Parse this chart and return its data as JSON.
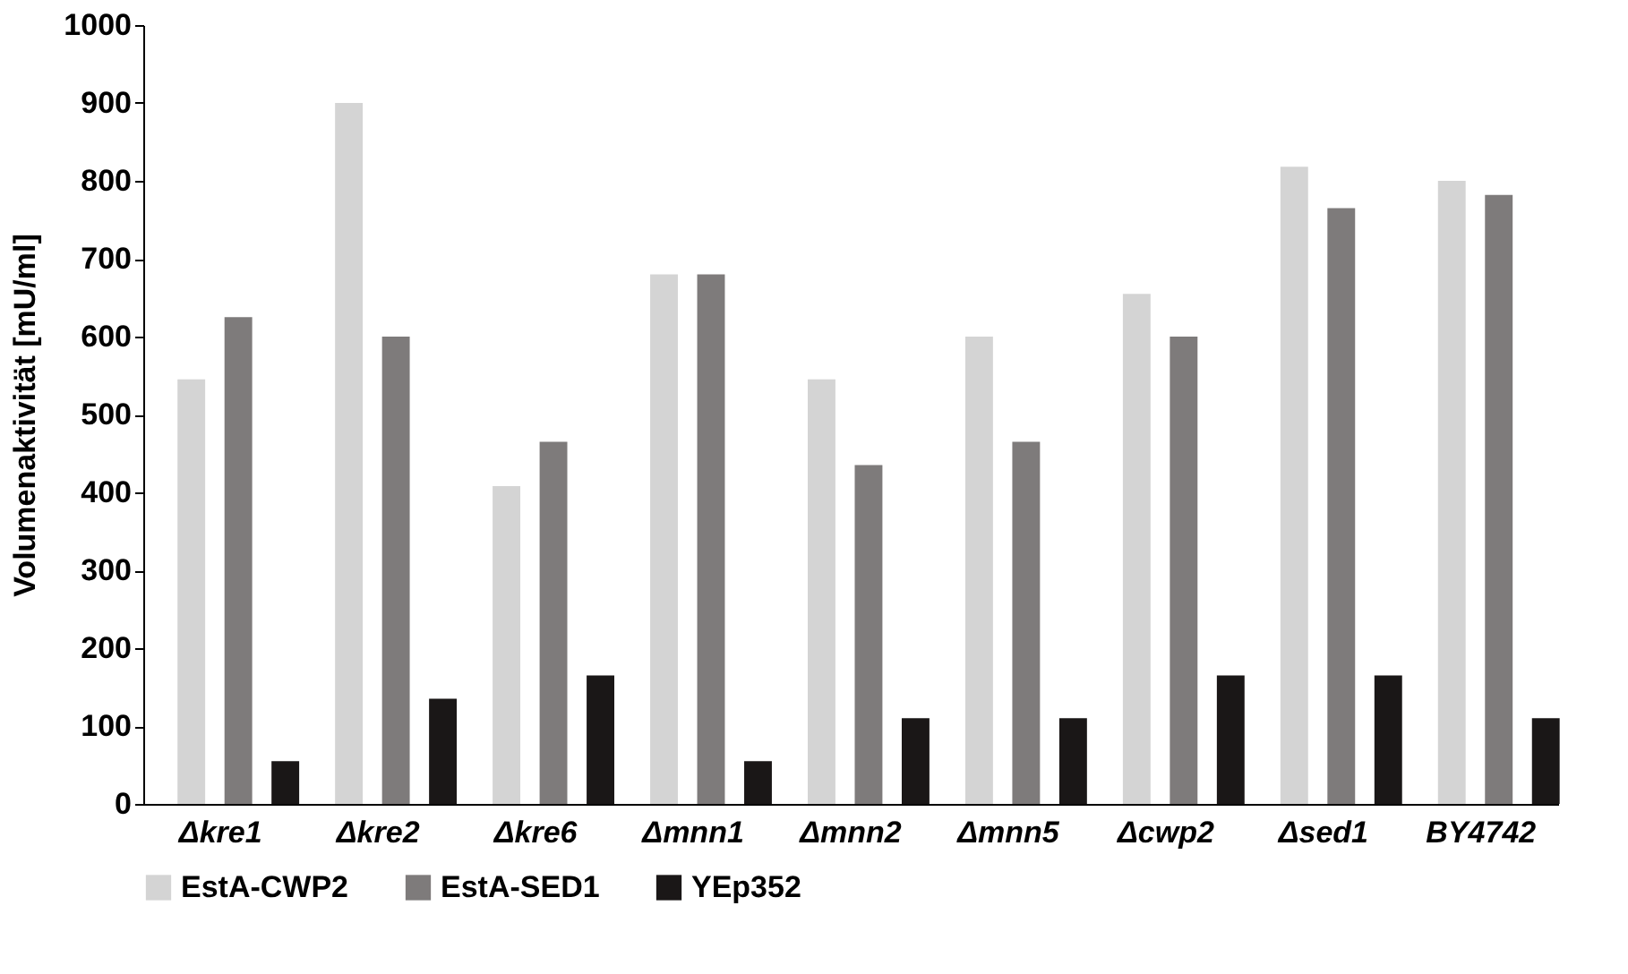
{
  "chart_data": {
    "type": "bar",
    "ylabel": "Volumenaktivität [mU/ml]",
    "categories": [
      "Δkre1",
      "Δkre2",
      "Δkre6",
      "Δmnn1",
      "Δmnn2",
      "Δmnn5",
      "Δcwp2",
      "Δsed1",
      "BY4742"
    ],
    "series": [
      {
        "name": "EstA-CWP2",
        "color": "#d4d4d4",
        "values": [
          545,
          900,
          408,
          680,
          545,
          600,
          655,
          818,
          800
        ]
      },
      {
        "name": "EstA-SED1",
        "color": "#7e7b7b",
        "values": [
          625,
          600,
          465,
          680,
          435,
          465,
          600,
          765,
          782
        ]
      },
      {
        "name": "YEp352",
        "color": "#1a1717",
        "values": [
          55,
          135,
          165,
          55,
          110,
          110,
          165,
          165,
          110
        ]
      }
    ],
    "ylim": [
      0,
      1000
    ],
    "yticks": [
      0,
      100,
      200,
      300,
      400,
      500,
      600,
      700,
      800,
      900,
      1000
    ],
    "grid": false,
    "legend": "bottom"
  }
}
